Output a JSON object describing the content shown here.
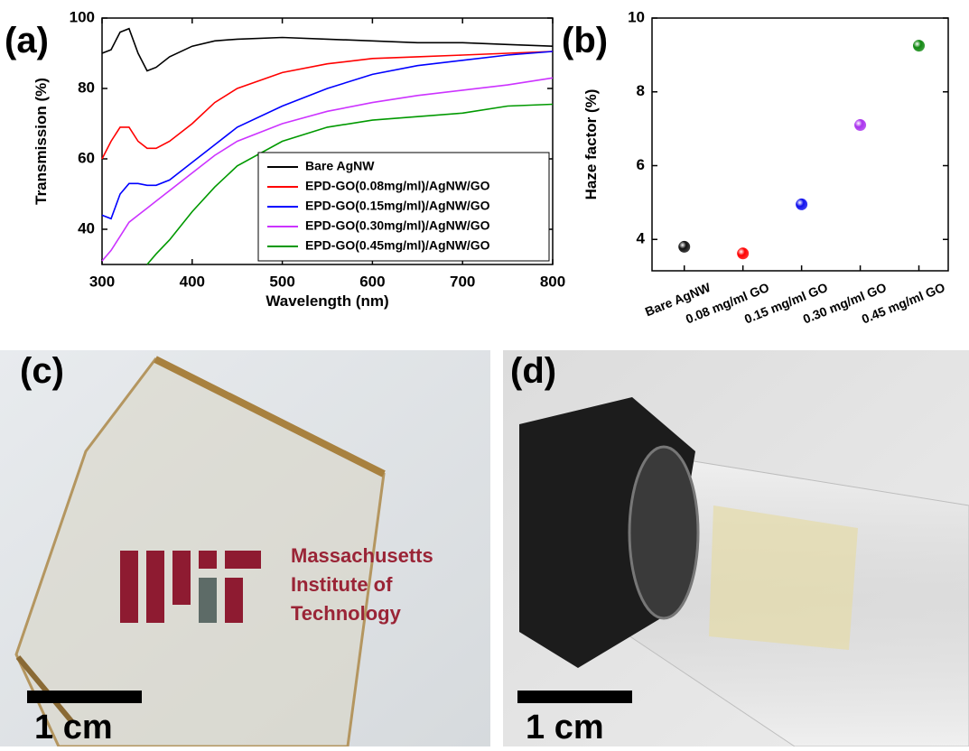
{
  "chart_data": [
    {
      "type": "line",
      "panel_label": "(a)",
      "x_label": "Wavelength (nm)",
      "y_label": "Transmission (%)",
      "x": [
        300,
        310,
        320,
        330,
        340,
        350,
        360,
        375,
        400,
        425,
        450,
        500,
        550,
        600,
        650,
        700,
        750,
        800
      ],
      "series": [
        {
          "name": "Bare AgNW",
          "color": "#000000",
          "values": [
            90,
            91,
            96,
            97,
            90,
            85,
            86,
            89,
            92,
            93.5,
            94,
            94.5,
            94,
            93.5,
            93,
            93,
            92.5,
            92
          ]
        },
        {
          "name": "EPD-GO(0.08mg/ml)/AgNW/GO",
          "color": "#ff0000",
          "values": [
            60,
            65,
            69,
            69,
            65,
            63,
            63,
            65,
            70,
            76,
            80,
            84.5,
            87,
            88.5,
            89,
            89.5,
            90,
            90.5
          ]
        },
        {
          "name": "EPD-GO(0.15mg/ml)/AgNW/GO",
          "color": "#0000ff",
          "values": [
            44,
            43,
            50,
            53,
            53,
            52.5,
            52.5,
            54,
            59,
            64,
            69,
            75,
            80,
            84,
            86.5,
            88,
            89.5,
            90.5
          ]
        },
        {
          "name": "EPD-GO(0.30mg/ml)/AgNW/GO",
          "color": "#cc33ff",
          "values": [
            31,
            34,
            38,
            42,
            44,
            46,
            48,
            51,
            56,
            61,
            65,
            70,
            73.5,
            76,
            78,
            79.5,
            81,
            83
          ]
        },
        {
          "name": "EPD-GO(0.45mg/ml)/AgNW/GO",
          "color": "#009900",
          "values": [
            null,
            null,
            null,
            null,
            null,
            30,
            33,
            37,
            45,
            52,
            58,
            65,
            69,
            71,
            72,
            73,
            75,
            75.5
          ]
        }
      ],
      "xlim": [
        300,
        800
      ],
      "xticks": [
        300,
        400,
        500,
        600,
        700,
        800
      ],
      "ylim": [
        30,
        100
      ],
      "yticks": [
        40,
        60,
        80,
        100
      ],
      "legend": "lower right"
    },
    {
      "type": "scatter",
      "panel_label": "(b)",
      "y_label": "Haze factor (%)",
      "categories": [
        "Bare AgNW",
        "0.08 mg/ml GO",
        "0.15 mg/ml GO",
        "0.30 mg/ml GO",
        "0.45 mg/ml GO"
      ],
      "values": [
        3.8,
        3.62,
        4.95,
        7.1,
        9.25
      ],
      "colors": [
        "#111111",
        "#ff0000",
        "#1010ee",
        "#aa33ee",
        "#118811"
      ],
      "ylim": [
        3.15,
        10
      ],
      "yticks": [
        4,
        6,
        8,
        10
      ]
    }
  ],
  "photos": [
    {
      "label": "(c)",
      "logo_text": [
        "Massachusetts",
        "Institute of",
        "Technology"
      ],
      "scale_bar": "1 cm"
    },
    {
      "label": "(d)",
      "scale_bar": "1 cm"
    }
  ]
}
